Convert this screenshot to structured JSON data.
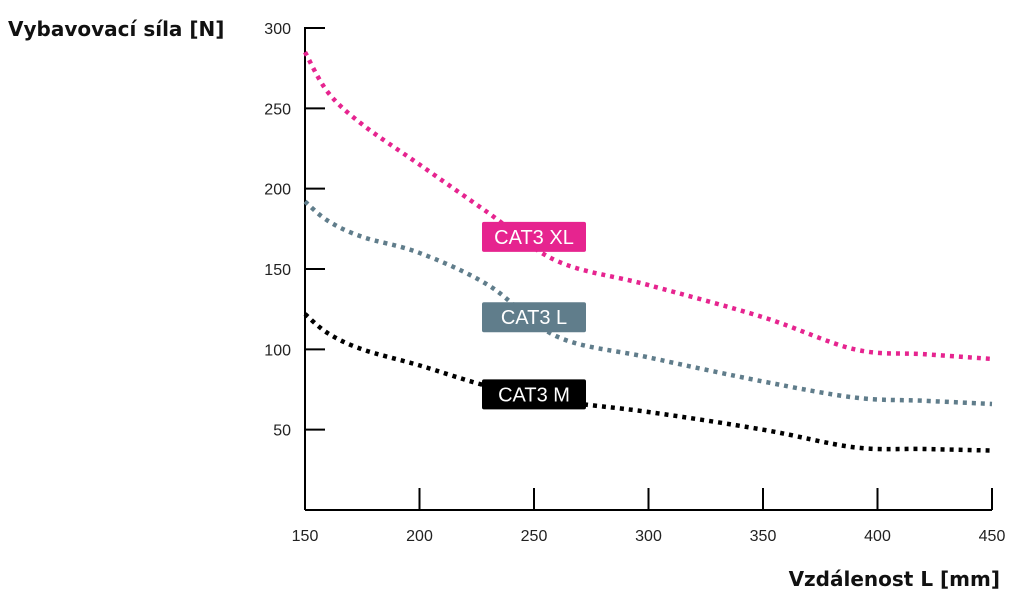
{
  "chart_data": {
    "type": "line",
    "title": "",
    "ylabel": "Vybavovací síla [N]",
    "xlabel": "Vzdálenost L [mm]",
    "xlim": [
      150,
      450
    ],
    "ylim": [
      0,
      300
    ],
    "x_ticks": [
      150,
      200,
      250,
      300,
      350,
      400,
      450
    ],
    "y_ticks": [
      50,
      100,
      150,
      200,
      250,
      300
    ],
    "grid": false,
    "legend": "inline labels on curves",
    "series": [
      {
        "name": "CAT3 XL",
        "color": "#e6248f",
        "x": [
          150,
          160,
          175,
          200,
          230,
          260,
          300,
          350,
          390,
          420,
          450
        ],
        "y": [
          285,
          260,
          240,
          215,
          185,
          155,
          140,
          120,
          100,
          97,
          94
        ]
      },
      {
        "name": "CAT3 L",
        "color": "#607d8b",
        "x": [
          150,
          160,
          175,
          200,
          230,
          260,
          300,
          350,
          390,
          420,
          450
        ],
        "y": [
          192,
          180,
          170,
          160,
          140,
          108,
          95,
          80,
          70,
          68,
          66
        ]
      },
      {
        "name": "CAT3 M",
        "color": "#000000",
        "x": [
          150,
          160,
          175,
          200,
          230,
          260,
          300,
          350,
          390,
          420,
          450
        ],
        "y": [
          122,
          110,
          100,
          90,
          77,
          68,
          61,
          50,
          39,
          38,
          37
        ]
      }
    ]
  }
}
